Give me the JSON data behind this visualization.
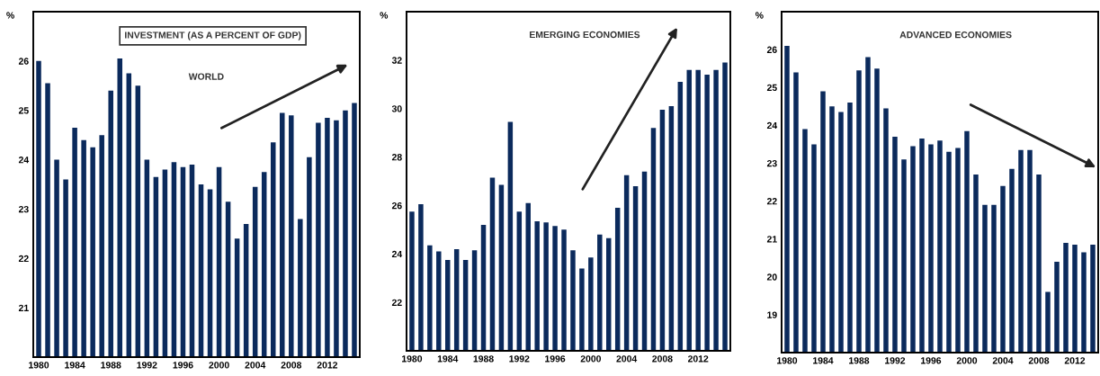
{
  "chart_data": [
    {
      "type": "bar",
      "title": "INVESTMENT (AS A PERCENT OF GDP)",
      "subtitle": "WORLD",
      "ylabel": "%",
      "color": "#0b2a5c",
      "categories": [
        "1980",
        null,
        null,
        null,
        "1984",
        null,
        null,
        null,
        "1988",
        null,
        null,
        null,
        "1992",
        null,
        null,
        null,
        "1996",
        null,
        null,
        null,
        "2000",
        null,
        null,
        null,
        "2004",
        null,
        null,
        null,
        "2008",
        null,
        null,
        null,
        "2012",
        null,
        null,
        null
      ],
      "values": [
        26.0,
        25.55,
        24.0,
        23.6,
        24.65,
        24.4,
        24.25,
        24.5,
        25.4,
        26.05,
        25.75,
        25.5,
        24.0,
        23.65,
        23.8,
        23.95,
        23.85,
        23.9,
        23.5,
        23.4,
        23.85,
        23.15,
        22.4,
        22.7,
        23.45,
        23.75,
        24.35,
        24.95,
        24.9,
        22.8,
        24.05,
        24.75,
        24.85,
        24.8,
        25.0,
        25.15
      ],
      "ylim": [
        20,
        27
      ],
      "yticks": [
        21,
        22,
        23,
        24,
        25,
        26
      ],
      "grid": false,
      "legend": false
    },
    {
      "type": "bar",
      "title": "EMERGING ECONOMIES",
      "ylabel": "%",
      "color": "#0b2a5c",
      "categories": [
        "1980",
        null,
        null,
        null,
        "1984",
        null,
        null,
        null,
        "1988",
        null,
        null,
        null,
        "1992",
        null,
        null,
        null,
        "1996",
        null,
        null,
        null,
        "2000",
        null,
        null,
        null,
        "2004",
        null,
        null,
        null,
        "2008",
        null,
        null,
        null,
        "2012",
        null,
        null,
        null
      ],
      "values": [
        25.75,
        26.05,
        24.35,
        24.1,
        23.75,
        24.2,
        23.75,
        24.15,
        25.2,
        27.15,
        26.85,
        29.45,
        25.75,
        26.1,
        25.35,
        25.3,
        25.15,
        25.0,
        24.15,
        23.4,
        23.85,
        24.8,
        24.65,
        25.9,
        27.25,
        26.8,
        27.4,
        29.2,
        29.95,
        30.1,
        31.1,
        31.6,
        31.6,
        31.4,
        31.6,
        31.9
      ],
      "ylim": [
        20,
        34
      ],
      "yticks": [
        22,
        24,
        26,
        28,
        30,
        32
      ],
      "grid": false,
      "legend": false
    },
    {
      "type": "bar",
      "title": "ADVANCED ECONOMIES",
      "ylabel": "%",
      "color": "#0b2a5c",
      "categories": [
        "1980",
        null,
        null,
        null,
        "1984",
        null,
        null,
        null,
        "1988",
        null,
        null,
        null,
        "1992",
        null,
        null,
        null,
        "1996",
        null,
        null,
        null,
        "2000",
        null,
        null,
        null,
        "2004",
        null,
        null,
        null,
        "2008",
        null,
        null,
        null,
        "2012",
        null,
        null
      ],
      "values": [
        26.1,
        25.4,
        23.9,
        23.5,
        24.9,
        24.5,
        24.35,
        24.6,
        25.45,
        25.8,
        25.5,
        24.45,
        23.7,
        23.1,
        23.45,
        23.65,
        23.5,
        23.6,
        23.3,
        23.4,
        23.85,
        22.7,
        21.9,
        21.9,
        22.4,
        22.85,
        23.35,
        23.35,
        22.7,
        19.6,
        20.4,
        20.9,
        20.85,
        20.65,
        20.85
      ],
      "ylim": [
        18,
        27
      ],
      "yticks": [
        19,
        20,
        21,
        22,
        23,
        24,
        25,
        26
      ],
      "grid": false,
      "legend": false
    }
  ]
}
